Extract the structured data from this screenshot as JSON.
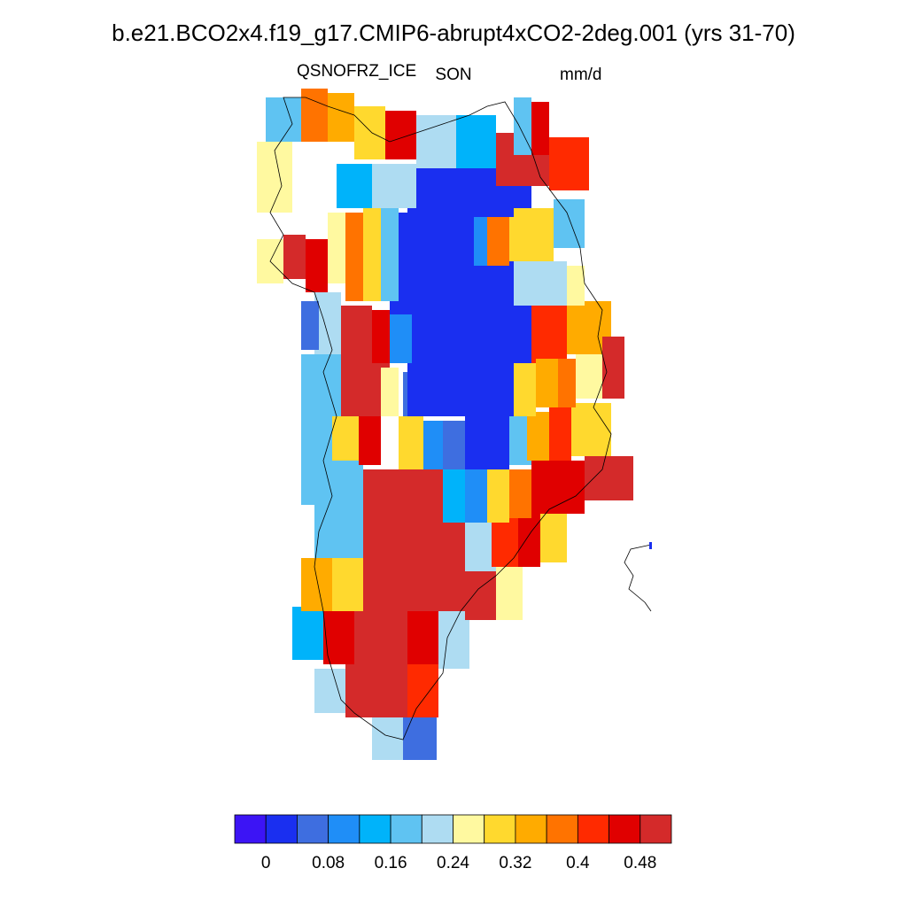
{
  "title": "b.e21.BCO2x4.f19_g17.CMIP6-abrupt4xCO2-2deg.001 (yrs 31-70)",
  "left_subtitle": "QSNOFRZ_ICE",
  "center_subtitle": "SON",
  "right_subtitle": "mm/d",
  "colorbar": {
    "colors": [
      "#3c14f5",
      "#1a2ff0",
      "#3e6ee0",
      "#1f8ef7",
      "#00b3fa",
      "#5fc3f2",
      "#aedcf2",
      "#fff9a0",
      "#ffd92e",
      "#ffab00",
      "#ff7300",
      "#ff2a00",
      "#e00000",
      "#d42a2a"
    ],
    "clim": [
      -0.04,
      0.52
    ],
    "ticks": [
      0,
      0.08,
      0.16,
      0.24,
      0.32,
      0.4,
      0.48
    ]
  }
}
